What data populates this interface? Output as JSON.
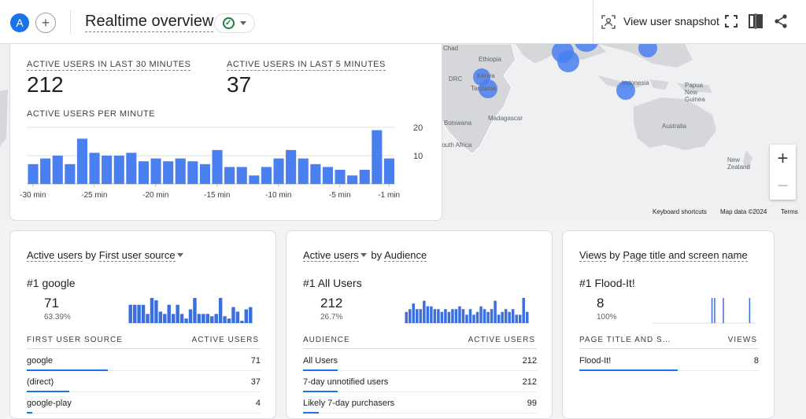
{
  "header": {
    "avatar_letter": "A",
    "add_symbol": "+",
    "title": "Realtime overview",
    "status_icon": "check-circle-icon",
    "snapshot_label": "View user snapshot",
    "icons": [
      "user-snapshot-icon",
      "fullscreen-icon",
      "compare-icon",
      "share-icon"
    ]
  },
  "map": {
    "labels": [
      "Chad",
      "Ethiopia",
      "DRC",
      "Kenya",
      "Tanzania",
      "Botswana",
      "South Africa",
      "Madagascar",
      "Indonesia",
      "Papua New Guinea",
      "Australia",
      "New Zealand"
    ],
    "zoom_in": "+",
    "zoom_out": "−",
    "keyboard_shortcuts": "Keyboard shortcuts",
    "map_data": "Map data ©2024",
    "terms": "Terms"
  },
  "summary": {
    "active_30_label": "ACTIVE USERS IN LAST 30 MINUTES",
    "active_30_value": "212",
    "active_5_label": "ACTIVE USERS IN LAST 5 MINUTES",
    "active_5_value": "37",
    "per_minute_label": "ACTIVE USERS PER MINUTE"
  },
  "chart_data": {
    "type": "bar",
    "title": "ACTIVE USERS PER MINUTE",
    "categories": [
      "-30 min",
      "-29 min",
      "-28 min",
      "-27 min",
      "-26 min",
      "-25 min",
      "-24 min",
      "-23 min",
      "-22 min",
      "-21 min",
      "-20 min",
      "-19 min",
      "-18 min",
      "-17 min",
      "-16 min",
      "-15 min",
      "-14 min",
      "-13 min",
      "-12 min",
      "-11 min",
      "-10 min",
      "-9 min",
      "-8 min",
      "-7 min",
      "-6 min",
      "-5 min",
      "-4 min",
      "-3 min",
      "-2 min",
      "-1 min"
    ],
    "values": [
      7,
      9,
      10,
      7,
      16,
      11,
      10,
      10,
      11,
      8,
      9,
      8,
      9,
      8,
      7,
      12,
      6,
      6,
      3,
      6,
      9,
      12,
      9,
      7,
      6,
      5,
      3,
      5,
      19,
      9
    ],
    "x_tick_labels": [
      "-30 min",
      "-25 min",
      "-20 min",
      "-15 min",
      "-10 min",
      "-5 min",
      "-1 min"
    ],
    "y_tick_labels": [
      "20",
      "10"
    ],
    "ylim": [
      0,
      20
    ],
    "color": "#4a7ff0"
  },
  "cards": [
    {
      "title_pre": "Active users",
      "title_mid": " by ",
      "title_post": "First user source",
      "dropdown_after": "post",
      "rank_label": "#1  google",
      "rank_value": "71",
      "rank_pct": "63.39%",
      "spark": [
        8,
        8,
        8,
        8,
        4,
        11,
        10,
        5,
        4,
        8,
        4,
        8,
        4,
        2,
        6,
        11,
        4,
        4,
        4,
        3,
        4,
        11,
        3,
        2,
        7,
        5,
        1,
        6,
        7
      ],
      "col1": "FIRST USER SOURCE",
      "col2": "ACTIVE USERS",
      "rows": [
        {
          "name": "google",
          "value": "71",
          "frac": 0.63
        },
        {
          "name": "(direct)",
          "value": "37",
          "frac": 0.33
        },
        {
          "name": "google-play",
          "value": "4",
          "frac": 0.04
        }
      ]
    },
    {
      "title_pre": "Active users",
      "title_mid": " by ",
      "title_post": "Audience",
      "dropdown_after": "pre",
      "rank_label": "#1  All Users",
      "rank_value": "212",
      "rank_pct": "26.7%",
      "spark": [
        4,
        5,
        7,
        5,
        5,
        8,
        6,
        6,
        5,
        5,
        4,
        5,
        4,
        5,
        5,
        6,
        5,
        3,
        5,
        3,
        4,
        6,
        5,
        4,
        5,
        8,
        3,
        4,
        5,
        4,
        5,
        3,
        3,
        9,
        4
      ],
      "col1": "AUDIENCE",
      "col2": "ACTIVE USERS",
      "rows": [
        {
          "name": "All Users",
          "value": "212",
          "frac": 0.27
        },
        {
          "name": "7-day unnotified users",
          "value": "212",
          "frac": 0.27
        },
        {
          "name": "Likely 7-day purchasers",
          "value": "99",
          "frac": 0.12
        }
      ]
    },
    {
      "title_pre": "Views",
      "title_mid": " by ",
      "title_post": "Page title and screen name",
      "dropdown_after": "none",
      "rank_label": "#1  Flood-It!",
      "rank_value": "8",
      "rank_pct": "100%",
      "spark": [
        0,
        0,
        0,
        0,
        0,
        0,
        0,
        0,
        0,
        0,
        0,
        0,
        0,
        0,
        0,
        0,
        0,
        0,
        0,
        0,
        0,
        0,
        0,
        0,
        0,
        0,
        0,
        0,
        0,
        0,
        0,
        0,
        0,
        0,
        0,
        0,
        0,
        0,
        0,
        0,
        0,
        0,
        0,
        0,
        0,
        0,
        0,
        0,
        0,
        0,
        0,
        0,
        0,
        0,
        0,
        0,
        0,
        0,
        0,
        0,
        0,
        0,
        0,
        0,
        0,
        0,
        1,
        0,
        0,
        1,
        0,
        0,
        0,
        0,
        0,
        0,
        0,
        0,
        0,
        1,
        0,
        0,
        0,
        0,
        0,
        0,
        0,
        0,
        0,
        0,
        0,
        0,
        0,
        0,
        0,
        0,
        0,
        0,
        0,
        0,
        0,
        0,
        0,
        0,
        0,
        0,
        0,
        0,
        0,
        1,
        0,
        0,
        0,
        0,
        0,
        0,
        0
      ],
      "col1": "PAGE TITLE AND S…",
      "col2": "VIEWS",
      "rows": [
        {
          "name": "Flood-It!",
          "value": "8",
          "frac": 1.0
        }
      ]
    }
  ]
}
